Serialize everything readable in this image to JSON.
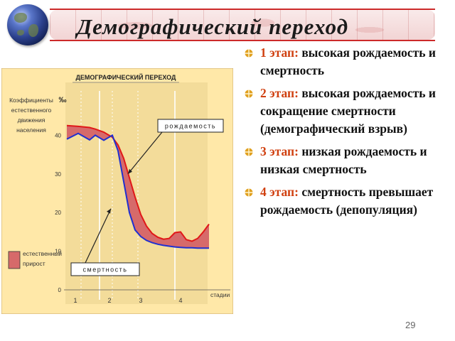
{
  "title": "Демографический переход",
  "chart_data": {
    "type": "line",
    "title": "ДЕМОГРАФИЧЕСКИЙ ПЕРЕХОД",
    "ylabel": "Коэффициенты естественного движения населения",
    "yunit": "‰",
    "xlabel": "стадии",
    "ylim": [
      0,
      50
    ],
    "yticks": [
      "0",
      "10",
      "20",
      "30",
      "40"
    ],
    "stages": [
      "1",
      "2",
      "3",
      "4"
    ],
    "x": [
      0,
      0.4,
      0.8,
      1.0,
      1.3,
      1.6,
      1.8,
      2.0,
      2.2,
      2.4,
      2.6,
      2.8,
      3.0,
      3.2,
      3.4,
      3.6,
      3.8,
      4.0,
      4.2,
      4.4,
      4.6,
      4.8,
      5.0
    ],
    "series": [
      {
        "name": "рождаемость",
        "color": "#e01818",
        "values": [
          42.5,
          42.3,
          42.0,
          41.6,
          40.8,
          39.5,
          37.5,
          34.0,
          29.0,
          24.0,
          19.5,
          16.5,
          14.6,
          13.6,
          13.1,
          13.3,
          14.8,
          15.0,
          13.0,
          12.6,
          13.3,
          15.0,
          17.0
        ]
      },
      {
        "name": "смертность",
        "color": "#2030d0",
        "values": [
          39.0,
          40.5,
          38.8,
          40.0,
          38.7,
          40.0,
          36.0,
          28.0,
          20.0,
          15.5,
          13.8,
          12.8,
          12.2,
          11.8,
          11.5,
          11.3,
          11.1,
          11.0,
          10.9,
          10.9,
          10.8,
          10.8,
          10.8
        ]
      }
    ],
    "fill_between": {
      "color": "#d66a6a",
      "label": "естественный прирост"
    },
    "annotations": [
      "рождаемость",
      "смертность"
    ],
    "colors": {
      "background": "#ffe8a8",
      "panel": "#f3dc9a"
    }
  },
  "bullets": [
    {
      "stage": "1 этап:",
      "text": " высокая рождаемость и смертность"
    },
    {
      "stage": "2 этап:",
      "text": " высокая рождаемость и сокращение смертности (демографический взрыв)"
    },
    {
      "stage": "3 этап:",
      "text": " низкая рождаемость и низкая смертность"
    },
    {
      "stage": "4 этап:",
      "text": " смертность превышает рождаемость (депопуляция)"
    }
  ],
  "page_number": "29"
}
